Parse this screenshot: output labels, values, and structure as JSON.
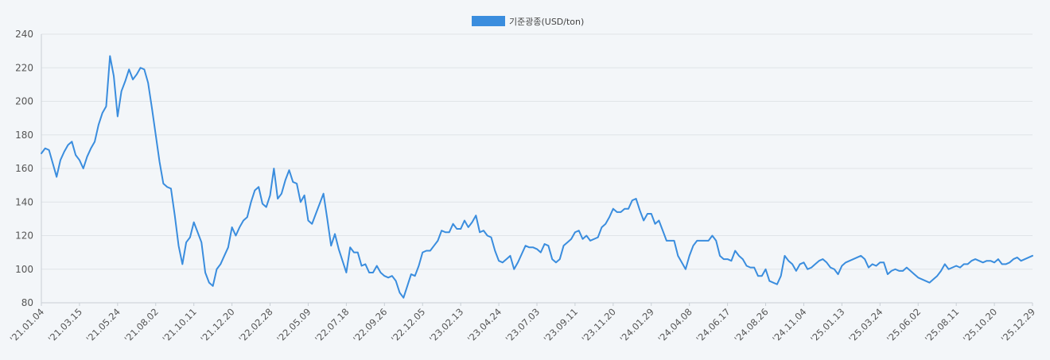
{
  "chart_data": {
    "type": "line",
    "legend": {
      "position": "top-center"
    },
    "series": [
      {
        "name": "기준광종(USD/ton)",
        "color": "#3a8dde",
        "values": [
          169,
          172,
          171,
          163,
          155,
          165,
          170,
          174,
          176,
          168,
          165,
          160,
          167,
          172,
          176,
          186,
          193,
          197,
          227,
          215,
          191,
          206,
          212,
          219,
          213,
          216,
          220,
          219,
          211,
          196,
          180,
          164,
          151,
          149,
          148,
          132,
          114,
          103,
          116,
          119,
          128,
          122,
          116,
          98,
          92,
          90,
          100,
          103,
          108,
          113,
          125,
          120,
          125,
          129,
          131,
          140,
          147,
          149,
          139,
          137,
          144,
          160,
          142,
          145,
          153,
          159,
          152,
          151,
          140,
          144,
          129,
          127,
          133,
          139,
          145,
          130,
          114,
          121,
          112,
          105,
          98,
          113,
          110,
          110,
          102,
          103,
          98,
          98,
          102,
          98,
          96,
          95,
          96,
          93,
          86,
          83,
          90,
          97,
          96,
          102,
          110,
          111,
          111,
          114,
          117,
          123,
          122,
          122,
          127,
          124,
          124,
          129,
          125,
          128,
          132,
          122,
          123,
          120,
          119,
          111,
          105,
          104,
          106,
          108,
          100,
          104,
          109,
          114,
          113,
          113,
          112,
          110,
          115,
          114,
          106,
          104,
          106,
          114,
          116,
          118,
          122,
          123,
          118,
          120,
          117,
          118,
          119,
          125,
          127,
          131,
          136,
          134,
          134,
          136,
          136,
          141,
          142,
          135,
          129,
          133,
          133,
          127,
          129,
          123,
          117,
          117,
          117,
          108,
          104,
          100,
          108,
          114,
          117,
          117,
          117,
          117,
          120,
          117,
          108,
          106,
          106,
          105,
          111,
          108,
          106,
          102,
          101,
          101,
          96,
          96,
          100,
          93,
          92,
          91,
          96,
          108,
          105,
          103,
          99,
          103,
          104,
          100,
          101,
          103,
          105,
          106,
          104,
          101,
          100,
          97,
          102,
          104,
          105,
          106,
          107,
          108,
          106,
          101,
          103,
          102,
          104,
          104,
          97,
          99,
          100,
          99,
          99,
          101,
          99,
          97,
          95,
          94,
          93,
          92,
          94,
          96,
          99,
          103,
          100,
          101,
          102,
          101,
          103,
          103,
          105,
          106,
          105,
          104,
          105,
          105,
          104,
          106,
          103,
          103,
          104,
          106,
          107,
          105,
          106,
          107,
          108
        ]
      }
    ],
    "xlabels": [
      "'21.01.04",
      "'21.03.15",
      "'21.05.24",
      "'21.08.02",
      "'21.10.11",
      "'21.12.20",
      "'22.02.28",
      "'22.05.09",
      "'22.07.18",
      "'22.09.26",
      "'22.12.05",
      "'23.02.13",
      "'23.04.24",
      "'23.07.03",
      "'23.09.11",
      "'23.11.20",
      "'24.01.29",
      "'24.04.08",
      "'24.06.17",
      "'24.08.26",
      "'24.11.04",
      "'25.01.13",
      "'25.03.24",
      "'25.06.02",
      "'25.08.11",
      "'25.10.20",
      "'25.12.29"
    ],
    "yticks": [
      80,
      100,
      120,
      140,
      160,
      180,
      200,
      220,
      240
    ],
    "ylim": [
      80,
      240
    ],
    "grid": true
  }
}
